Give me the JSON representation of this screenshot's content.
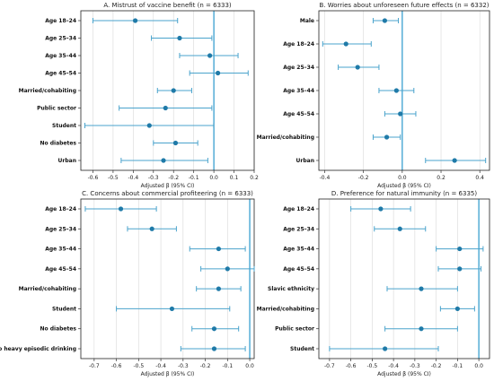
{
  "colors": {
    "marker": "#1f7aa8",
    "errorbar": "#4aa3cc",
    "refline": "#3aa0d0",
    "grid": "#d9d9d9"
  },
  "chart_data": [
    {
      "type": "scatter",
      "title": "A. Mistrust of vaccine benefit (n = 6333)",
      "xlabel": "Adjusted β (95% CI)",
      "xlim": [
        -0.66,
        0.2
      ],
      "xticks": [
        "-0.6",
        "-0.5",
        "-0.4",
        "-0.3",
        "-0.2",
        "-0.1",
        "0.0",
        "0.1",
        "0.2"
      ],
      "xtick_values": [
        -0.6,
        -0.5,
        -0.4,
        -0.3,
        -0.2,
        -0.1,
        0.0,
        0.1,
        0.2
      ],
      "reference_line": 0,
      "grid": "vertical",
      "categories": [
        "Age 18–24",
        "Age 25–34",
        "Age 35–44",
        "Age 45–54",
        "Married/cohabiting",
        "Public sector",
        "Student",
        "No diabetes",
        "Urban"
      ],
      "estimate": [
        -0.39,
        -0.17,
        -0.02,
        0.02,
        -0.2,
        -0.24,
        -0.32,
        -0.19,
        -0.25
      ],
      "ci_low": [
        -0.6,
        -0.31,
        -0.17,
        -0.12,
        -0.28,
        -0.47,
        -0.64,
        -0.3,
        -0.46
      ],
      "ci_high": [
        -0.18,
        -0.01,
        0.12,
        0.17,
        -0.11,
        -0.01,
        -0.001,
        -0.08,
        -0.03
      ]
    },
    {
      "type": "scatter",
      "title": "B. Worries about unforeseen future effects (n = 6332)",
      "xlabel": "Adjusted β (95% CI)",
      "xlim": [
        -0.43,
        0.45
      ],
      "xticks": [
        "-0.4",
        "-0.2",
        "0.0",
        "0.2",
        "0.4"
      ],
      "xtick_values": [
        -0.4,
        -0.2,
        0.0,
        0.2,
        0.4
      ],
      "reference_line": 0,
      "grid": "vertical",
      "categories": [
        "Male",
        "Age 18–24",
        "Age 25–34",
        "Age 35–44",
        "Age 45–54",
        "Married/cohabiting",
        "Urban"
      ],
      "estimate": [
        -0.09,
        -0.29,
        -0.23,
        -0.03,
        -0.01,
        -0.08,
        0.27
      ],
      "ci_low": [
        -0.15,
        -0.41,
        -0.33,
        -0.12,
        -0.09,
        -0.15,
        0.12
      ],
      "ci_high": [
        -0.02,
        -0.16,
        -0.12,
        0.06,
        0.07,
        -0.01,
        0.43
      ]
    },
    {
      "type": "scatter",
      "title": "C. Concerns about commercial profiteering (n = 6333)",
      "xlabel": "Adjusted β (95% CI)",
      "xlim": [
        -0.76,
        0.02
      ],
      "xticks": [
        "-0.7",
        "-0.6",
        "-0.5",
        "-0.4",
        "-0.3",
        "-0.2",
        "-0.1",
        "0.0"
      ],
      "xtick_values": [
        -0.7,
        -0.6,
        -0.5,
        -0.4,
        -0.3,
        -0.2,
        -0.1,
        0.0
      ],
      "reference_line": 0,
      "grid": "vertical",
      "categories": [
        "Age 18–24",
        "Age 25–34",
        "Age 35–44",
        "Age 45–54",
        "Married/cohabiting",
        "Student",
        "No diabetes",
        "No heavy episodic drinking"
      ],
      "estimate": [
        -0.58,
        -0.44,
        -0.14,
        -0.1,
        -0.14,
        -0.35,
        -0.16,
        -0.16
      ],
      "ci_low": [
        -0.74,
        -0.55,
        -0.27,
        -0.22,
        -0.24,
        -0.6,
        -0.26,
        -0.31
      ],
      "ci_high": [
        -0.42,
        -0.33,
        -0.02,
        0.02,
        -0.04,
        -0.09,
        -0.05,
        -0.02
      ]
    },
    {
      "type": "scatter",
      "title": "D. Preference for natural immunity (n = 6335)",
      "xlabel": "Adjusted β (95% CI)",
      "xlim": [
        -0.75,
        0.05
      ],
      "xticks": [
        "-0.7",
        "-0.6",
        "-0.5",
        "-0.4",
        "-0.3",
        "-0.2",
        "-0.1",
        "0.0"
      ],
      "xtick_values": [
        -0.7,
        -0.6,
        -0.5,
        -0.4,
        -0.3,
        -0.2,
        -0.1,
        0.0
      ],
      "reference_line": 0,
      "grid": "vertical",
      "categories": [
        "Age 18–24",
        "Age 25–34",
        "Age 35–44",
        "Age 45–54",
        "Slavic ethnicity",
        "Married/cohabiting",
        "Public sector",
        "Student"
      ],
      "estimate": [
        -0.46,
        -0.37,
        -0.09,
        -0.09,
        -0.27,
        -0.1,
        -0.27,
        -0.44
      ],
      "ci_low": [
        -0.6,
        -0.49,
        -0.2,
        -0.19,
        -0.43,
        -0.18,
        -0.44,
        -0.7
      ],
      "ci_high": [
        -0.32,
        -0.25,
        0.02,
        0.01,
        -0.1,
        -0.02,
        -0.1,
        -0.19
      ]
    }
  ]
}
